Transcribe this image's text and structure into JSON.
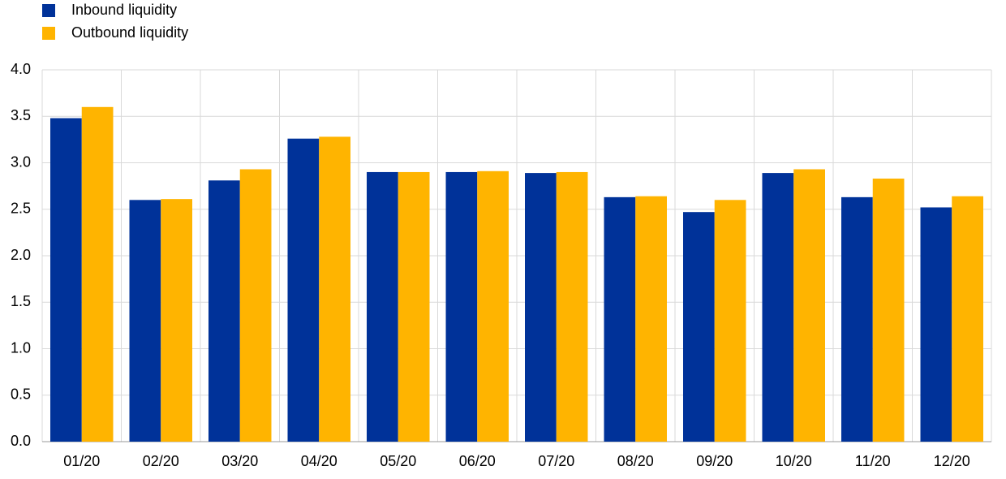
{
  "chart_data": {
    "type": "bar",
    "categories": [
      "01/20",
      "02/20",
      "03/20",
      "04/20",
      "05/20",
      "06/20",
      "07/20",
      "08/20",
      "09/20",
      "10/20",
      "11/20",
      "12/20"
    ],
    "series": [
      {
        "name": "Inbound liquidity",
        "color": "#003299",
        "values": [
          3.48,
          2.6,
          2.81,
          3.26,
          2.9,
          2.9,
          2.89,
          2.63,
          2.47,
          2.89,
          2.63,
          2.52
        ]
      },
      {
        "name": "Outbound liquidity",
        "color": "#ffb400",
        "values": [
          3.6,
          2.61,
          2.93,
          3.28,
          2.9,
          2.91,
          2.9,
          2.64,
          2.6,
          2.93,
          2.83,
          2.64
        ]
      }
    ],
    "ylim": [
      0,
      4
    ],
    "yticks": [
      {
        "value": 0,
        "label": "0.0"
      },
      0.5,
      {
        "value": 1,
        "label": "1.0"
      },
      1.5,
      {
        "value": 2,
        "label": "2.0"
      },
      2.5,
      {
        "value": 3,
        "label": "3.0"
      },
      3.5,
      {
        "value": 4,
        "label": "4.0"
      }
    ],
    "grid": true,
    "legend": "top-left"
  }
}
